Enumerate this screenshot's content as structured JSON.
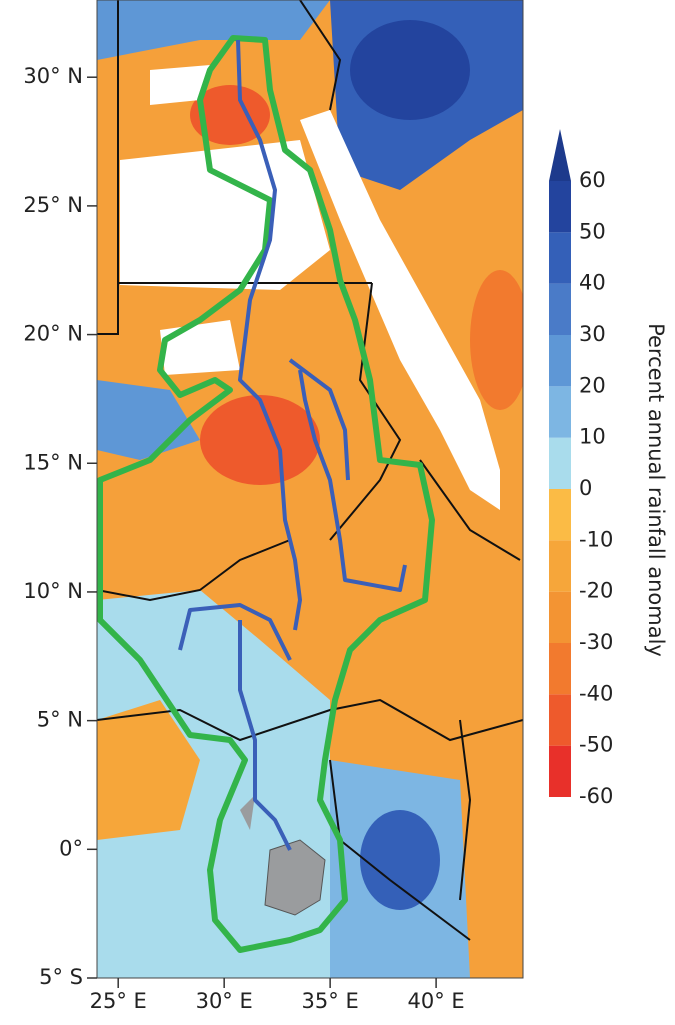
{
  "map": {
    "xlim": [
      24,
      44.1
    ],
    "ylim": [
      -5,
      33
    ],
    "xticks": [
      {
        "value": 25,
        "label": "25° E"
      },
      {
        "value": 30,
        "label": "30° E"
      },
      {
        "value": 35,
        "label": "35° E"
      },
      {
        "value": 40,
        "label": "40° E"
      }
    ],
    "yticks": [
      {
        "value": -5,
        "label": "5° S"
      },
      {
        "value": 0,
        "label": "0°"
      },
      {
        "value": 5,
        "label": "5° N"
      },
      {
        "value": 10,
        "label": "10° N"
      },
      {
        "value": 15,
        "label": "15° N"
      },
      {
        "value": 20,
        "label": "20° N"
      },
      {
        "value": 25,
        "label": "25° N"
      },
      {
        "value": 30,
        "label": "30° N"
      }
    ]
  },
  "colorbar": {
    "label": "Percent annual rainfall anomaly",
    "ticks": [
      -60,
      -50,
      -40,
      -30,
      -20,
      -10,
      0,
      10,
      20,
      30,
      40,
      50,
      60
    ],
    "colors": [
      "#e8302a",
      "#ee5a2c",
      "#f27a2e",
      "#f39433",
      "#f6a63a",
      "#fbbb45",
      "#a9dcec",
      "#7db6e3",
      "#5e97d6",
      "#4a7bc8",
      "#3460b8",
      "#23449e"
    ],
    "extend_color": "#1d3a8c"
  }
}
